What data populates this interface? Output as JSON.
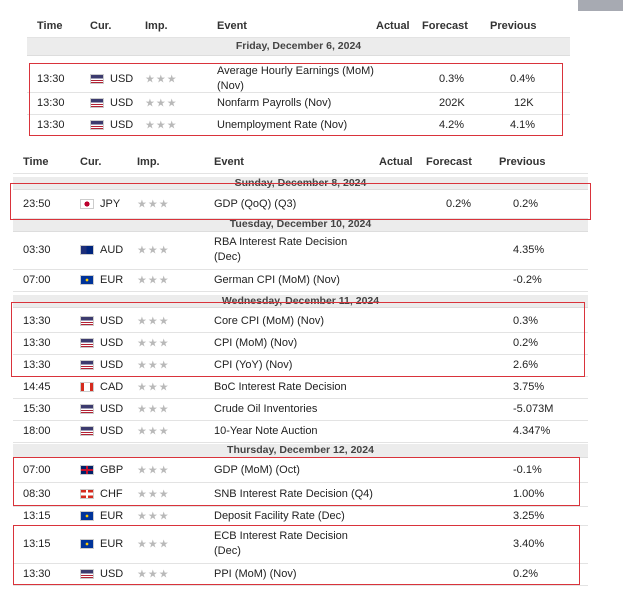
{
  "headers": {
    "time": "Time",
    "cur": "Cur.",
    "imp": "Imp.",
    "event": "Event",
    "actual": "Actual",
    "forecast": "Forecast",
    "previous": "Previous"
  },
  "top": {
    "day": "Friday, December 6, 2024",
    "rows": [
      {
        "time": "13:30",
        "cur": "USD",
        "imp": "★★★",
        "event": "Average Hourly Earnings (MoM)",
        "event2": "(Nov)",
        "actual": "",
        "forecast": "0.3%",
        "previous": "0.4%"
      },
      {
        "time": "13:30",
        "cur": "USD",
        "imp": "★★★",
        "event": "Nonfarm Payrolls (Nov)",
        "actual": "",
        "forecast": "202K",
        "previous": "12K"
      },
      {
        "time": "13:30",
        "cur": "USD",
        "imp": "★★★",
        "event": "Unemployment Rate (Nov)",
        "actual": "",
        "forecast": "4.2%",
        "previous": "4.1%"
      }
    ]
  },
  "bottom": {
    "days": [
      "Sunday, December 8, 2024",
      "Tuesday, December 10, 2024",
      "Wednesday, December 11, 2024",
      "Thursday, December 12, 2024"
    ],
    "rows": [
      {
        "time": "23:50",
        "cur": "JPY",
        "imp": "★★★",
        "event": "GDP (QoQ) (Q3)",
        "forecast": "0.2%",
        "previous": "0.2%"
      },
      {
        "time": "03:30",
        "cur": "AUD",
        "imp": "★★★",
        "event": "RBA Interest Rate Decision",
        "event2": "(Dec)",
        "forecast": "",
        "previous": "4.35%"
      },
      {
        "time": "07:00",
        "cur": "EUR",
        "imp": "★★★",
        "event": "German CPI (MoM) (Nov)",
        "forecast": "",
        "previous": "-0.2%"
      },
      {
        "time": "13:30",
        "cur": "USD",
        "imp": "★★★",
        "event": "Core CPI (MoM) (Nov)",
        "forecast": "",
        "previous": "0.3%"
      },
      {
        "time": "13:30",
        "cur": "USD",
        "imp": "★★★",
        "event": "CPI (MoM) (Nov)",
        "forecast": "",
        "previous": "0.2%"
      },
      {
        "time": "13:30",
        "cur": "USD",
        "imp": "★★★",
        "event": "CPI (YoY) (Nov)",
        "forecast": "",
        "previous": "2.6%"
      },
      {
        "time": "14:45",
        "cur": "CAD",
        "imp": "★★★",
        "event": "BoC Interest Rate Decision",
        "forecast": "",
        "previous": "3.75%"
      },
      {
        "time": "15:30",
        "cur": "USD",
        "imp": "★★★",
        "event": "Crude Oil Inventories",
        "forecast": "",
        "previous": "-5.073M"
      },
      {
        "time": "18:00",
        "cur": "USD",
        "imp": "★★★",
        "event": "10-Year Note Auction",
        "forecast": "",
        "previous": "4.347%"
      },
      {
        "time": "07:00",
        "cur": "GBP",
        "imp": "★★★",
        "event": "GDP (MoM) (Oct)",
        "forecast": "",
        "previous": "-0.1%"
      },
      {
        "time": "08:30",
        "cur": "CHF",
        "imp": "★★★",
        "event": "SNB Interest Rate Decision (Q4)",
        "forecast": "",
        "previous": "1.00%"
      },
      {
        "time": "13:15",
        "cur": "EUR",
        "imp": "★★★",
        "event": "Deposit Facility Rate (Dec)",
        "forecast": "",
        "previous": "3.25%"
      },
      {
        "time": "13:15",
        "cur": "EUR",
        "imp": "★★★",
        "event": "ECB Interest Rate Decision",
        "event2": "(Dec)",
        "forecast": "",
        "previous": "3.40%"
      },
      {
        "time": "13:30",
        "cur": "USD",
        "imp": "★★★",
        "event": "PPI (MoM) (Nov)",
        "forecast": "",
        "previous": "0.2%"
      }
    ]
  },
  "flags": {
    "USD": "usa-flag-icon",
    "JPY": "japan-flag-icon",
    "AUD": "australia-flag-icon",
    "EUR": "eu-flag-icon",
    "CAD": "canada-flag-icon",
    "GBP": "uk-flag-icon",
    "CHF": "swiss-flag-icon"
  },
  "colors": {
    "highlight_border": "#d9333b",
    "day_header_bg": "#ececec",
    "star": "#b9b9b9"
  }
}
